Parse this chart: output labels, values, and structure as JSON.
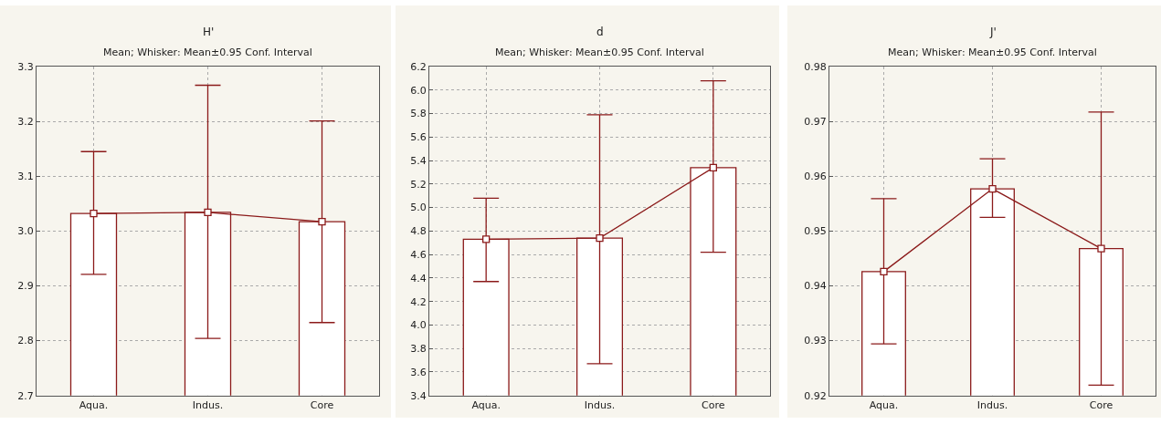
{
  "chart_data": [
    {
      "type": "bar",
      "title": "H'",
      "subtitle": "Mean; Whisker: Mean±0.95 Conf. Interval",
      "categories": [
        "Aqua.",
        "Indus.",
        "Core"
      ],
      "ylim": [
        2.7,
        3.3
      ],
      "yticks": [
        2.7,
        2.8,
        2.9,
        {
          "value": 3.0,
          "label": "3.0"
        },
        3.1,
        3.2,
        3.3
      ],
      "grid": true,
      "series": [
        {
          "color": "#8b1a1a",
          "values": [
            3.032,
            3.034,
            3.017
          ],
          "errors": [
            [
              2.921,
              3.145
            ],
            [
              2.804,
              3.266
            ],
            [
              2.833,
              3.201
            ]
          ]
        },
        {
          "type": "line",
          "color": "#8b1a1a",
          "marker": "square",
          "values": [
            3.032,
            3.034,
            3.017
          ]
        }
      ]
    },
    {
      "type": "bar",
      "title": "d",
      "subtitle": "Mean; Whisker: Mean±0.95 Conf. Interval",
      "categories": [
        "Aqua.",
        "Indus.",
        "Core"
      ],
      "ylim": [
        3.4,
        6.2
      ],
      "yticks": [
        3.4,
        3.6,
        3.8,
        {
          "value": 4.0,
          "label": "4.0"
        },
        4.2,
        4.4,
        4.6,
        4.8,
        {
          "value": 5.0,
          "label": "5.0"
        },
        5.2,
        5.4,
        5.6,
        5.8,
        {
          "value": 6.0,
          "label": "6.0"
        },
        6.2
      ],
      "grid": true,
      "series": [
        {
          "color": "#8b1a1a",
          "values": [
            4.73,
            4.74,
            5.34
          ],
          "errors": [
            [
              4.37,
              5.08
            ],
            [
              3.67,
              5.79
            ],
            [
              4.62,
              6.08
            ]
          ]
        },
        {
          "type": "line",
          "color": "#8b1a1a",
          "marker": "square",
          "values": [
            4.73,
            4.74,
            5.34
          ]
        }
      ]
    },
    {
      "type": "bar",
      "title": "J'",
      "subtitle": "Mean; Whisker: Mean±0.95 Conf. Interval",
      "categories": [
        "Aqua.",
        "Indus.",
        "Core"
      ],
      "ylim": [
        0.92,
        0.98
      ],
      "yticks": [
        0.92,
        0.93,
        0.94,
        0.95,
        0.96,
        0.97,
        0.98
      ],
      "grid": true,
      "series": [
        {
          "color": "#8b1a1a",
          "values": [
            0.9426,
            0.9577,
            0.9468
          ],
          "errors": [
            [
              0.9294,
              0.9559
            ],
            [
              0.9525,
              0.9632
            ],
            [
              0.9219,
              0.9717
            ]
          ]
        },
        {
          "type": "line",
          "color": "#8b1a1a",
          "marker": "square",
          "values": [
            0.9426,
            0.9577,
            0.9468
          ]
        }
      ]
    }
  ]
}
